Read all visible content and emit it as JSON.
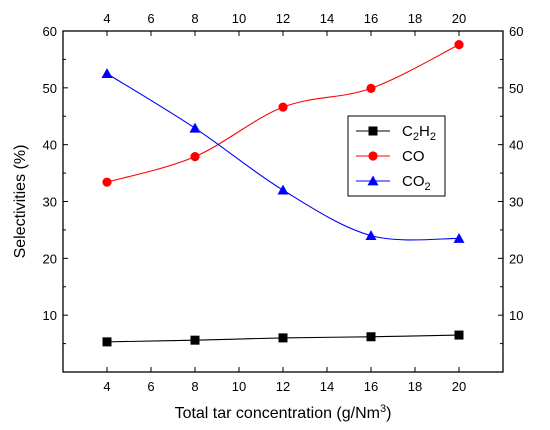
{
  "chart_data": {
    "type": "line",
    "title": "",
    "xlabel": "Total tar concentration (g/Nm",
    "xlabel_sup": "3",
    "xlabel_close": ")",
    "ylabel": "Selectivities (%)",
    "xlim": [
      2,
      22
    ],
    "ylim": [
      0,
      60
    ],
    "x_ticks": [
      4,
      6,
      8,
      10,
      12,
      14,
      16,
      18,
      20
    ],
    "y_ticks_left": [
      10,
      20,
      30,
      40,
      50,
      60
    ],
    "y_ticks_right": [
      10,
      20,
      30,
      40,
      50,
      60
    ],
    "grid": false,
    "legend_position": "center-right",
    "x": [
      4,
      8,
      12,
      16,
      20
    ],
    "series": [
      {
        "name": "C2H2",
        "label_main": "C",
        "label_sub1": "2",
        "label_mid": "H",
        "label_sub2": "2",
        "color": "#000000",
        "marker": "square",
        "values": [
          5.3,
          5.6,
          6.0,
          6.2,
          6.5
        ]
      },
      {
        "name": "CO",
        "label_main": "CO",
        "color": "#ff0000",
        "marker": "circle",
        "values": [
          33.4,
          37.9,
          46.6,
          49.9,
          57.6
        ]
      },
      {
        "name": "CO2",
        "label_main": "CO",
        "label_sub1": "2",
        "color": "#0000ff",
        "marker": "triangle",
        "values": [
          52.5,
          42.9,
          32.0,
          24.0,
          23.5
        ]
      }
    ]
  }
}
